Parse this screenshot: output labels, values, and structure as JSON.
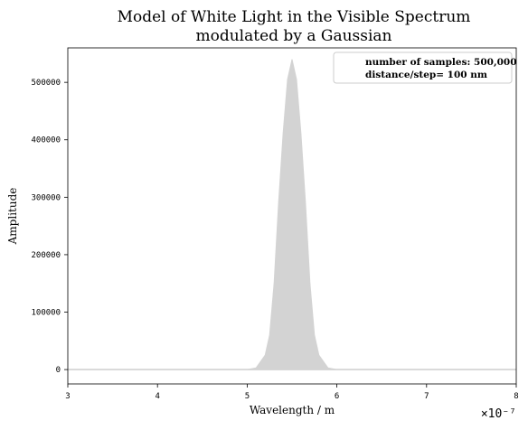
{
  "chart_data": {
    "type": "area",
    "title": "Model of White Light in the Visible Spectrum",
    "subtitle": "modulated by a Gaussian",
    "xlabel": "Wavelength / m",
    "ylabel": "Amplitude",
    "x_scale_label": "×10⁻⁷",
    "x_unit_multiplier": 1e-07,
    "xlim": [
      3,
      8
    ],
    "ylim": [
      -25000,
      560000
    ],
    "x_ticks": [
      3,
      4,
      5,
      6,
      7,
      8
    ],
    "x_tick_labels": [
      "3",
      "4",
      "5",
      "6",
      "7",
      "8"
    ],
    "y_ticks": [
      0,
      100000,
      200000,
      300000,
      400000,
      500000
    ],
    "y_tick_labels": [
      "0",
      "100000",
      "200000",
      "300000",
      "400000",
      "500000"
    ],
    "grid": false,
    "legend_position": "top-right",
    "legend_lines": [
      "number of samples: 500,000",
      "distance/step= 100 nm"
    ],
    "series": [
      {
        "color": "#d3d3d3",
        "envelope": "gaussian",
        "center": 5.5,
        "peak_amplitude": 540000,
        "baseline": 0,
        "x": [
          3.0,
          5.0,
          5.1,
          5.2,
          5.25,
          5.3,
          5.35,
          5.4,
          5.45,
          5.5,
          5.55,
          5.6,
          5.65,
          5.7,
          5.75,
          5.8,
          5.9,
          6.0,
          8.0
        ],
        "y": [
          0,
          0,
          3000,
          25000,
          60000,
          150000,
          290000,
          410000,
          505000,
          540000,
          505000,
          410000,
          290000,
          150000,
          60000,
          25000,
          3000,
          0,
          0
        ]
      }
    ]
  }
}
